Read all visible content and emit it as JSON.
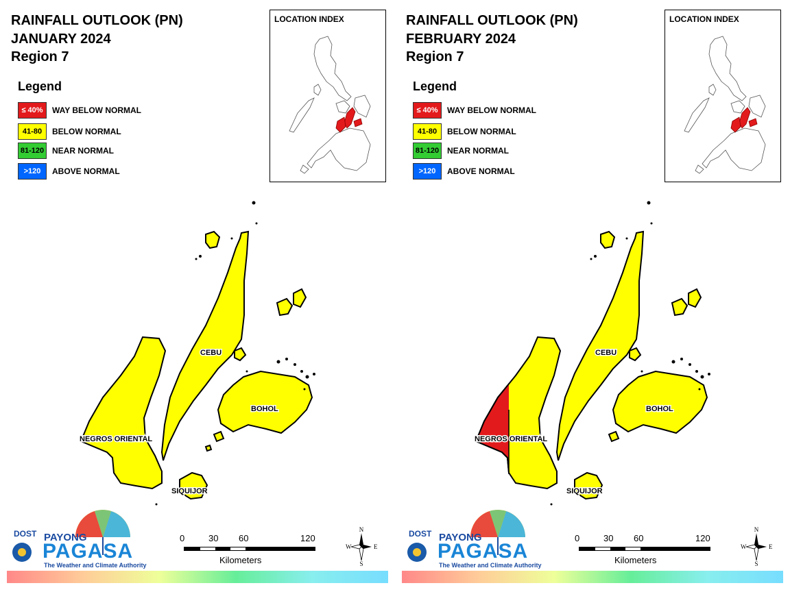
{
  "panels": [
    {
      "title_line1": "RAINFALL OUTLOOK (PN)",
      "title_line2": "JANUARY 2024",
      "title_line3": "Region 7",
      "neg_red": false
    },
    {
      "title_line1": "RAINFALL OUTLOOK (PN)",
      "title_line2": "FEBRUARY 2024",
      "title_line3": "Region 7",
      "neg_red": true
    }
  ],
  "legend": {
    "title": "Legend",
    "items": [
      {
        "range": "≤ 40%",
        "label": "WAY BELOW NORMAL",
        "color": "#e31a1c"
      },
      {
        "range": "41-80",
        "label": "BELOW NORMAL",
        "color": "#ffff00"
      },
      {
        "range": "81-120",
        "label": "NEAR NORMAL",
        "color": "#33cc33"
      },
      {
        "range": ">120",
        "label": "ABOVE NORMAL",
        "color": "#0066ff"
      }
    ]
  },
  "inset": {
    "title": "LOCATION INDEX"
  },
  "places": {
    "cebu": "CEBU",
    "bohol": "BOHOL",
    "negros": "NEGROS ORIENTAL",
    "siquijor": "SIQUIJOR"
  },
  "scale": {
    "ticks": [
      "0",
      "30",
      "60",
      "120"
    ],
    "unit": "Kilometers"
  },
  "compass": {
    "n": "N",
    "s": "S",
    "e": "E",
    "w": "W"
  },
  "logo": {
    "dost": "DOST",
    "payong": "PAYONG",
    "pagasa": "PAGASA",
    "tagline": "The Weather and Climate Authority"
  },
  "colors": {
    "yellow": "#ffff00",
    "red": "#e31a1c",
    "outline": "#000000"
  }
}
